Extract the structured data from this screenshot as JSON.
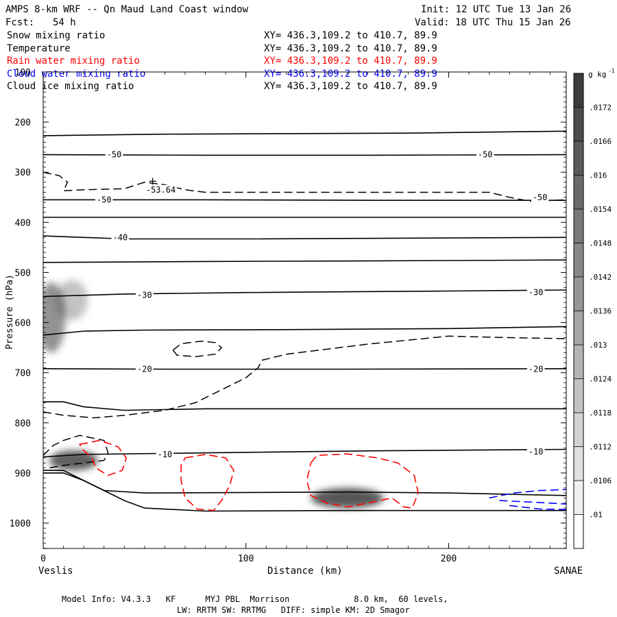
{
  "header": {
    "title": "AMPS 8-km WRF -- Qn Maud Land Coast window",
    "fcst_label": "Fcst:",
    "fcst_value": "54 h",
    "init": "Init: 12 UTC Tue 13 Jan 26",
    "valid": "Valid: 18 UTC Thu 15 Jan 26"
  },
  "fields": [
    {
      "name": "Snow mixing ratio",
      "xy": "XY= 436.3,109.2 to 410.7, 89.9",
      "color": "#000000"
    },
    {
      "name": "Temperature",
      "xy": "XY= 436.3,109.2 to 410.7, 89.9",
      "color": "#000000"
    },
    {
      "name": "Rain water mixing ratio",
      "xy": "XY= 436.3,109.2 to 410.7, 89.9",
      "color": "#ff0000"
    },
    {
      "name": "Cloud water mixing ratio",
      "xy": "XY= 436.3,109.2 to 410.7, 89.9",
      "color": "#0000ff"
    },
    {
      "name": "Cloud ice mixing ratio",
      "xy": "XY= 436.3,109.2 to 410.7, 89.9",
      "color": "#000000"
    }
  ],
  "footer": {
    "line1": "Model Info: V4.3.3   KF      MYJ PBL  Morrison             8.0 km,  60 levels,",
    "line2": "LW: RRTM SW: RRTMG   DIFF: simple KM: 2D Smagor"
  },
  "colors": {
    "rain": "#ff0000",
    "cloud_water": "#0000ff",
    "temperature": "#000000",
    "shade": "#3a3a3a"
  },
  "chart_data": {
    "type": "cross-section",
    "xlabel": "Distance (km)",
    "ylabel": "Pressure (hPa)",
    "xlim": [
      0,
      258
    ],
    "ylim": [
      1050,
      100
    ],
    "x_ticks": [
      0,
      100,
      200
    ],
    "y_ticks": [
      100,
      200,
      300,
      400,
      500,
      600,
      700,
      800,
      900,
      1000
    ],
    "left_endpoint": "Veslis",
    "right_endpoint": "SANAE",
    "colorbar": {
      "unit": "g kg",
      "unit_exp": "-1",
      "ticks": [
        ".0172",
        ".0166",
        ".016",
        ".0154",
        ".0148",
        ".0142",
        ".0136",
        ".013",
        ".0124",
        ".0118",
        ".0112",
        ".0106",
        ".01"
      ]
    },
    "isotherm_labels": [
      {
        "text": "-50",
        "x": 35,
        "p": 265
      },
      {
        "text": "-50",
        "x": 218,
        "p": 265
      },
      {
        "text": "-53.64",
        "x": 58,
        "p": 335
      },
      {
        "text": "-50",
        "x": 30,
        "p": 355
      },
      {
        "text": "-50",
        "x": 245,
        "p": 350
      },
      {
        "text": "-40",
        "x": 38,
        "p": 430
      },
      {
        "text": "-30",
        "x": 50,
        "p": 545
      },
      {
        "text": "-30",
        "x": 243,
        "p": 540
      },
      {
        "text": "-20",
        "x": 50,
        "p": 693
      },
      {
        "text": "-20",
        "x": 243,
        "p": 693
      },
      {
        "text": "-10",
        "x": 60,
        "p": 863
      },
      {
        "text": "-10",
        "x": 243,
        "p": 858
      }
    ],
    "solid_isotherms": [
      [
        [
          0,
          227
        ],
        [
          60,
          224
        ],
        [
          120,
          223
        ],
        [
          180,
          222
        ],
        [
          258,
          218
        ]
      ],
      [
        [
          0,
          265
        ],
        [
          80,
          266
        ],
        [
          160,
          266
        ],
        [
          258,
          265
        ]
      ],
      [
        [
          0,
          355
        ],
        [
          80,
          355
        ],
        [
          160,
          356
        ],
        [
          258,
          356
        ]
      ],
      [
        [
          0,
          390
        ],
        [
          100,
          390
        ],
        [
          258,
          390
        ]
      ],
      [
        [
          0,
          427
        ],
        [
          40,
          433
        ],
        [
          100,
          433
        ],
        [
          258,
          430
        ]
      ],
      [
        [
          0,
          480
        ],
        [
          80,
          478
        ],
        [
          160,
          477
        ],
        [
          258,
          475
        ]
      ],
      [
        [
          0,
          548
        ],
        [
          40,
          543
        ],
        [
          100,
          540
        ],
        [
          200,
          537
        ],
        [
          258,
          535
        ]
      ],
      [
        [
          0,
          625
        ],
        [
          20,
          617
        ],
        [
          50,
          615
        ],
        [
          120,
          614
        ],
        [
          200,
          612
        ],
        [
          258,
          608
        ]
      ],
      [
        [
          0,
          692
        ],
        [
          60,
          693
        ],
        [
          150,
          693
        ],
        [
          258,
          692
        ]
      ],
      [
        [
          0,
          758
        ],
        [
          10,
          758
        ],
        [
          20,
          768
        ],
        [
          40,
          775
        ],
        [
          80,
          772
        ],
        [
          150,
          772
        ],
        [
          258,
          772
        ]
      ],
      [
        [
          0,
          868
        ],
        [
          20,
          863
        ],
        [
          80,
          860
        ],
        [
          160,
          856
        ],
        [
          258,
          853
        ]
      ],
      [
        [
          0,
          900
        ],
        [
          10,
          900
        ],
        [
          20,
          915
        ],
        [
          30,
          935
        ],
        [
          50,
          940
        ],
        [
          150,
          938
        ],
        [
          200,
          940
        ],
        [
          258,
          945
        ]
      ],
      [
        [
          0,
          895
        ],
        [
          10,
          895
        ],
        [
          20,
          915
        ],
        [
          30,
          935
        ],
        [
          40,
          955
        ],
        [
          50,
          970
        ],
        [
          80,
          976
        ],
        [
          150,
          975
        ],
        [
          258,
          975
        ]
      ]
    ],
    "dashed_isotherms": [
      [
        [
          0,
          300
        ],
        [
          8,
          307
        ],
        [
          12,
          320
        ],
        [
          10,
          337
        ],
        [
          20,
          335
        ],
        [
          40,
          333
        ],
        [
          50,
          320
        ],
        [
          60,
          325
        ],
        [
          70,
          335
        ],
        [
          80,
          340
        ],
        [
          120,
          340
        ],
        [
          160,
          340
        ],
        [
          200,
          340
        ],
        [
          220,
          340
        ],
        [
          230,
          350
        ],
        [
          240,
          358
        ],
        [
          258,
          355
        ]
      ],
      [
        [
          0,
          778
        ],
        [
          10,
          785
        ],
        [
          25,
          790
        ],
        [
          40,
          785
        ],
        [
          60,
          775
        ],
        [
          75,
          760
        ],
        [
          85,
          740
        ],
        [
          100,
          710
        ],
        [
          106,
          690
        ],
        [
          108,
          675
        ],
        [
          113,
          670
        ],
        [
          120,
          663
        ],
        [
          160,
          643
        ],
        [
          200,
          627
        ],
        [
          230,
          630
        ],
        [
          258,
          632
        ]
      ],
      [
        [
          0,
          865
        ],
        [
          5,
          845
        ],
        [
          10,
          835
        ],
        [
          18,
          825
        ],
        [
          30,
          835
        ],
        [
          32,
          860
        ],
        [
          30,
          875
        ],
        [
          20,
          880
        ],
        [
          10,
          885
        ],
        [
          3,
          890
        ]
      ]
    ],
    "dashed_loops": [
      [
        [
          64,
          655
        ],
        [
          68,
          642
        ],
        [
          78,
          637
        ],
        [
          85,
          640
        ],
        [
          88,
          650
        ],
        [
          85,
          663
        ],
        [
          75,
          668
        ],
        [
          66,
          665
        ]
      ]
    ],
    "rain_contours": [
      [
        [
          18,
          843
        ],
        [
          28,
          835
        ],
        [
          37,
          848
        ],
        [
          41,
          870
        ],
        [
          39,
          895
        ],
        [
          32,
          905
        ],
        [
          26,
          890
        ],
        [
          24,
          870
        ],
        [
          20,
          855
        ]
      ],
      [
        [
          70,
          870
        ],
        [
          80,
          863
        ],
        [
          90,
          870
        ],
        [
          94,
          895
        ],
        [
          92,
          925
        ],
        [
          88,
          955
        ],
        [
          84,
          975
        ],
        [
          76,
          972
        ],
        [
          70,
          950
        ],
        [
          68,
          915
        ],
        [
          68,
          885
        ]
      ],
      [
        [
          132,
          880
        ],
        [
          135,
          865
        ],
        [
          150,
          862
        ],
        [
          165,
          870
        ],
        [
          175,
          880
        ],
        [
          183,
          905
        ],
        [
          185,
          940
        ],
        [
          182,
          970
        ],
        [
          178,
          968
        ],
        [
          172,
          950
        ],
        [
          160,
          960
        ],
        [
          150,
          968
        ],
        [
          140,
          960
        ],
        [
          132,
          945
        ],
        [
          130,
          915
        ]
      ]
    ],
    "cloud_water_contours": [
      [
        [
          220,
          950
        ],
        [
          232,
          940
        ],
        [
          245,
          935
        ],
        [
          258,
          933
        ]
      ],
      [
        [
          225,
          955
        ],
        [
          240,
          958
        ],
        [
          258,
          962
        ]
      ],
      [
        [
          230,
          965
        ],
        [
          245,
          972
        ],
        [
          258,
          973
        ]
      ]
    ],
    "shaded_regions": [
      {
        "x": 4,
        "p": 590,
        "rx": 7,
        "rp": 70,
        "opacity": 0.55
      },
      {
        "x": 14,
        "p": 555,
        "rx": 8,
        "rp": 40,
        "opacity": 0.3
      },
      {
        "x": 15,
        "p": 875,
        "rx": 12,
        "rp": 20,
        "opacity": 0.8
      },
      {
        "x": 150,
        "p": 950,
        "rx": 18,
        "rp": 20,
        "opacity": 0.85
      }
    ]
  }
}
